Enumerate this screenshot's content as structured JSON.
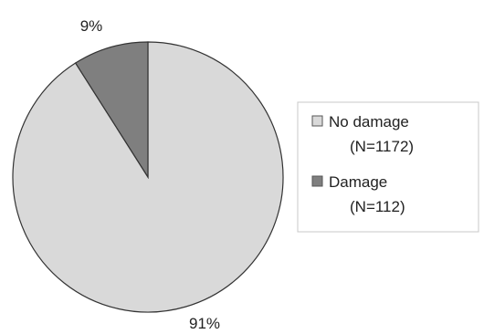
{
  "chart_data": {
    "type": "pie",
    "title": "",
    "slices": [
      {
        "label": "No damage",
        "count_label": "(N=1172)",
        "value": 91,
        "pct_label": "91%",
        "color": "#d9d9d9"
      },
      {
        "label": "Damage",
        "count_label": "(N=112)",
        "value": 9,
        "pct_label": "9%",
        "color": "#7f7f7f"
      }
    ],
    "legend_position": "right",
    "start": "top",
    "direction": "clockwise"
  }
}
